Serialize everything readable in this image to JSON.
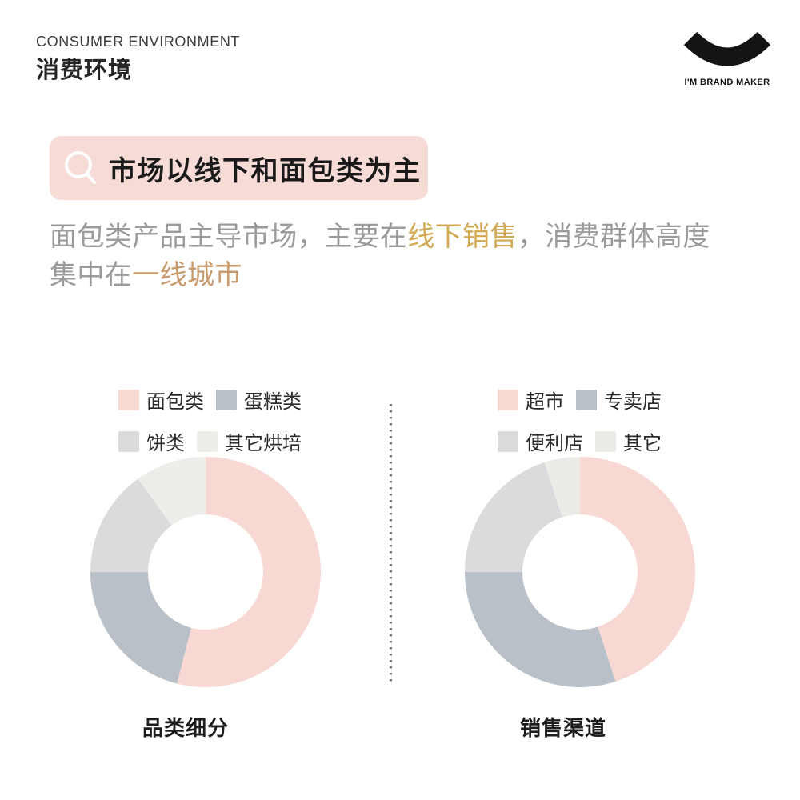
{
  "header": {
    "kicker": "CONSUMER ENVIRONMENT",
    "title": "消费环境",
    "logo_text": "I'M BRAND MAKER"
  },
  "banner": {
    "text": "市场以线下和面包类为主",
    "bg_color": "#f6dbd7",
    "icon": "magnifier-icon"
  },
  "paragraph": {
    "segments": [
      {
        "text": "面包类产品主导市场，主要在",
        "color": "#9b9b9b"
      },
      {
        "text": "线下销售",
        "color": "#d3a954"
      },
      {
        "text": "，消费群体高度集中在",
        "color": "#9b9b9b"
      },
      {
        "text": "一线城市",
        "color": "#c89b6d"
      }
    ]
  },
  "chart_data": [
    {
      "type": "pie",
      "donut": true,
      "title": "品类细分",
      "unit": "%",
      "start_angle_deg": 0,
      "legend_position": "top",
      "slices": [
        {
          "label": "面包类",
          "value": 54,
          "color": "#f7d8d3"
        },
        {
          "label": "蛋糕类",
          "value": 21,
          "color": "#bac0c7"
        },
        {
          "label": "饼类",
          "value": 15,
          "color": "#dbdbdd"
        },
        {
          "label": "其它烘培",
          "value": 10,
          "color": "#eeedea"
        }
      ]
    },
    {
      "type": "pie",
      "donut": true,
      "title": "销售渠道",
      "unit": "%",
      "start_angle_deg": 0,
      "legend_position": "top",
      "slices": [
        {
          "label": "超市",
          "value": 45,
          "color": "#f7d8d3"
        },
        {
          "label": "专卖店",
          "value": 30,
          "color": "#bac0c7"
        },
        {
          "label": "便利店",
          "value": 20,
          "color": "#dbdbdd"
        },
        {
          "label": "其它",
          "value": 5,
          "color": "#ebebe7"
        }
      ]
    }
  ],
  "colors": {
    "page_bg": "#ffffff",
    "divider_dots": "#757575",
    "logo_black": "#141414",
    "heading_text": "#262626",
    "body_gray": "#9b9b9b"
  }
}
